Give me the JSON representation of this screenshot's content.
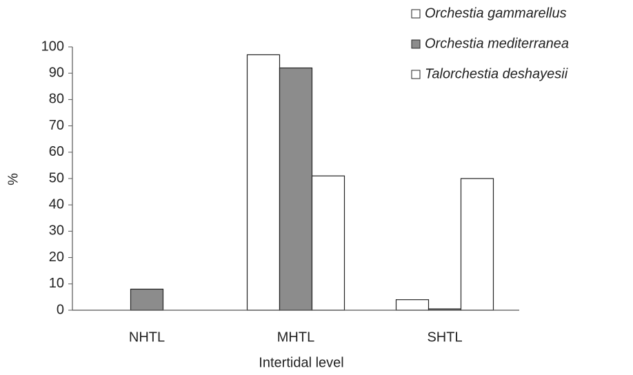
{
  "chart_data": {
    "type": "bar",
    "categories": [
      "NHTL",
      "MHTL",
      "SHTL"
    ],
    "series": [
      {
        "name": "Orchestia gammarellus",
        "color": "#ffffff",
        "values": [
          0,
          97,
          4
        ]
      },
      {
        "name": "Orchestia mediterranea",
        "color": "#8c8c8c",
        "values": [
          8,
          92,
          0.5
        ]
      },
      {
        "name": "Talorchestia deshayesii",
        "color": "#ffffff",
        "values": [
          0,
          51,
          50
        ]
      }
    ],
    "ylabel": "%",
    "xlabel": "Intertidal level",
    "ylim": [
      0,
      100
    ],
    "yticks": [
      0,
      10,
      20,
      30,
      40,
      50,
      60,
      70,
      80,
      90,
      100
    ],
    "legend": "top-right"
  }
}
